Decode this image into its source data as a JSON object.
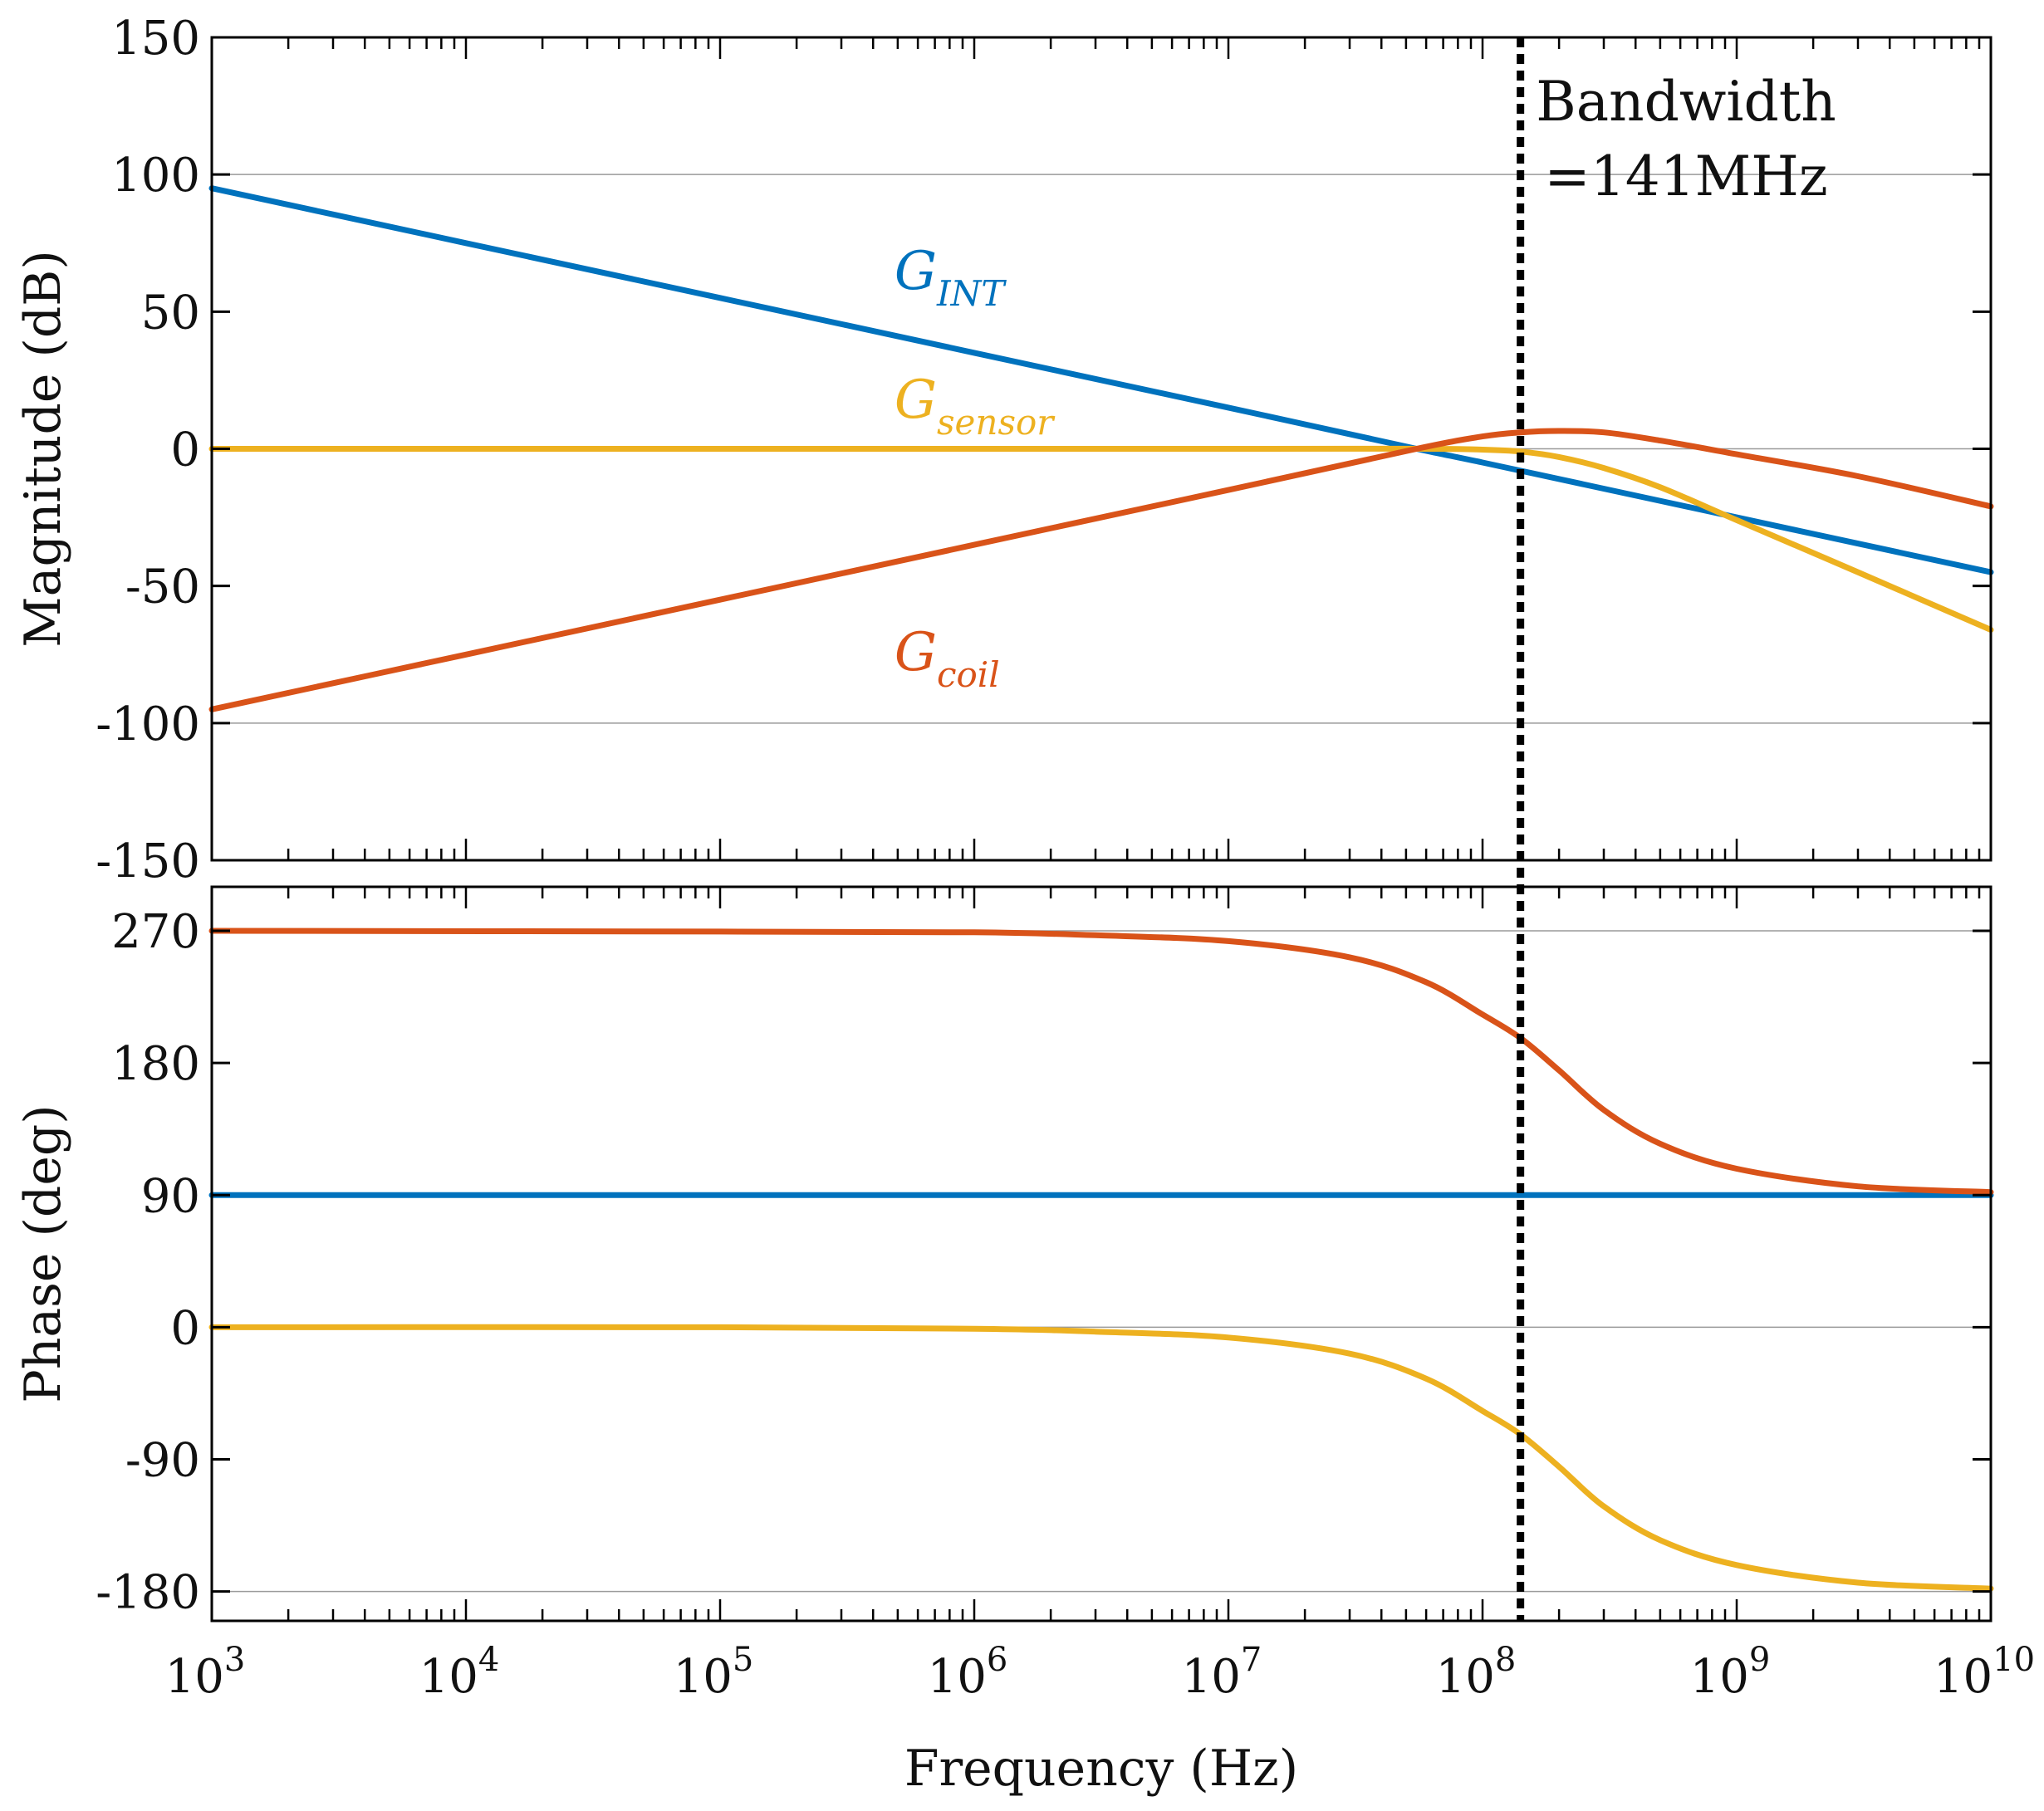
{
  "colors": {
    "int": "#0072BD",
    "sensor": "#EDB120",
    "coil": "#D95319",
    "axis": "#000000",
    "grid": "#9a9a9a"
  },
  "annotation": {
    "line1": "Bandwidth",
    "line2": "=141MHz",
    "frequency_hz": 141000000
  },
  "chart_data": [
    {
      "type": "line",
      "ylabel": "Magnitude (dB)",
      "xscale": "log",
      "xlim": [
        1000,
        10000000000
      ],
      "ylim": [
        -150,
        150
      ],
      "yticks": [
        "150",
        "100",
        "50",
        "0",
        "-50",
        "-100",
        "-150"
      ],
      "ytick_values": [
        150,
        100,
        50,
        0,
        -50,
        -100,
        -150
      ],
      "grid": "horizontal lines at 100, 0, -100",
      "labels": [
        {
          "series": "int",
          "main": "G",
          "sub": "INT",
          "x": 1500000,
          "y": 65
        },
        {
          "series": "sensor",
          "main": "G",
          "sub": "sensor",
          "x": 1500000,
          "y": 18
        },
        {
          "series": "coil",
          "main": "G",
          "sub": "coil",
          "x": 1500000,
          "y": -74
        }
      ],
      "series": [
        {
          "key": "int",
          "color": "#0072BD",
          "x": [
            1000,
            10000,
            100000,
            1000000,
            10000000,
            55000000,
            100000000,
            1000000000,
            10000000000
          ],
          "y": [
            95,
            75,
            55,
            35,
            15,
            0,
            -5,
            -25,
            -45
          ]
        },
        {
          "key": "sensor",
          "color": "#EDB120",
          "x": [
            1000,
            10000000,
            60000000,
            100000000,
            141000000,
            200000000,
            300000000,
            500000000,
            1000000000,
            3000000000,
            10000000000
          ],
          "y": [
            0,
            0,
            0,
            -0.3,
            -1,
            -3,
            -7,
            -14,
            -26,
            -45,
            -66
          ]
        },
        {
          "key": "coil",
          "color": "#D95319",
          "x": [
            1000,
            10000,
            100000,
            1000000,
            10000000,
            55000000,
            100000000,
            141000000,
            200000000,
            300000000,
            500000000,
            1000000000,
            3000000000,
            10000000000
          ],
          "y": [
            -95,
            -75,
            -55,
            -35,
            -15,
            0,
            4.5,
            6,
            6.5,
            6,
            3,
            -2,
            -10,
            -21
          ]
        }
      ]
    },
    {
      "type": "line",
      "ylabel": "Phase (deg)",
      "xlabel": "Frequency (Hz)",
      "xscale": "log",
      "xlim": [
        1000,
        10000000000
      ],
      "ylim": [
        -200,
        300
      ],
      "yticks": [
        "270",
        "180",
        "90",
        "0",
        "-90",
        "-180"
      ],
      "ytick_values": [
        270,
        180,
        90,
        0,
        -90,
        -180
      ],
      "xtick_exponents": [
        "3",
        "4",
        "5",
        "6",
        "7",
        "8",
        "9",
        "10"
      ],
      "xtick_base": "10",
      "xtick_values": [
        1000,
        10000,
        100000,
        1000000,
        10000000,
        100000000,
        1000000000,
        10000000000
      ],
      "grid": "horizontal lines at 270, 0, -180",
      "series": [
        {
          "key": "int",
          "color": "#0072BD",
          "x": [
            1000,
            10000000000
          ],
          "y": [
            90,
            90
          ]
        },
        {
          "key": "sensor",
          "color": "#EDB120",
          "x": [
            1000,
            100000,
            1000000,
            3000000,
            10000000,
            30000000,
            60000000,
            100000000,
            141000000,
            200000000,
            300000000,
            500000000,
            1000000000,
            3000000000,
            10000000000
          ],
          "y": [
            0,
            0,
            -1,
            -3,
            -7,
            -18,
            -35,
            -57,
            -73,
            -95,
            -122,
            -145,
            -162,
            -174,
            -178
          ]
        },
        {
          "key": "coil",
          "color": "#D95319",
          "x": [
            1000,
            100000,
            1000000,
            3000000,
            10000000,
            30000000,
            60000000,
            100000000,
            141000000,
            200000000,
            300000000,
            500000000,
            1000000000,
            3000000000,
            10000000000
          ],
          "y": [
            270,
            269.5,
            269,
            267,
            263,
            252,
            235,
            213,
            197,
            175,
            148,
            125,
            108,
            96,
            92
          ]
        }
      ]
    }
  ]
}
